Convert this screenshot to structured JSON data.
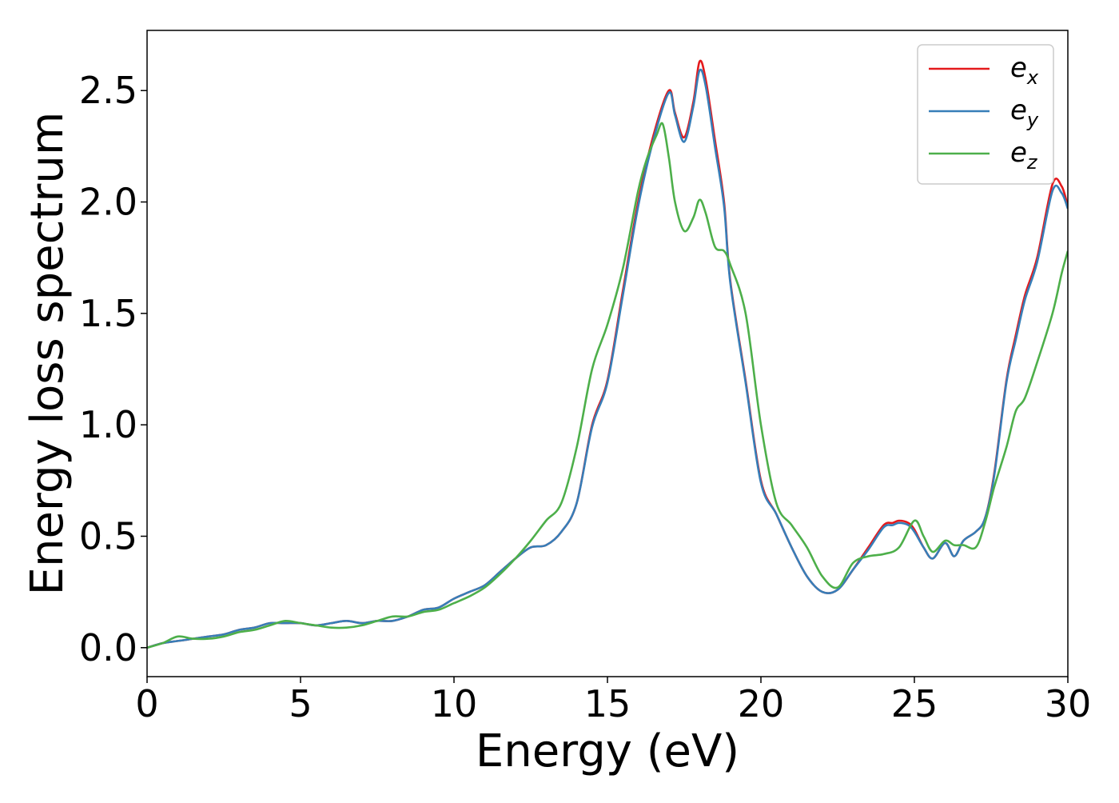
{
  "chart_data": {
    "type": "line",
    "xlabel": "Energy (eV)",
    "ylabel": "Energy loss spectrum",
    "xlim": [
      0,
      30
    ],
    "ylim": [
      -0.13,
      2.77
    ],
    "xticks": [
      0,
      5,
      10,
      15,
      20,
      25,
      30
    ],
    "xtick_labels": [
      "0",
      "5",
      "10",
      "15",
      "20",
      "25",
      "30"
    ],
    "yticks": [
      0.0,
      0.5,
      1.0,
      1.5,
      2.0,
      2.5
    ],
    "ytick_labels": [
      "0.0",
      "0.5",
      "1.0",
      "1.5",
      "2.0",
      "2.5"
    ],
    "grid": false,
    "legend_position": "top-right",
    "series": [
      {
        "name": "e_x",
        "legend_main": "e",
        "legend_sub": "x",
        "color": "#e41a1c",
        "x": [
          0,
          0.5,
          1,
          1.5,
          2,
          2.5,
          3,
          3.5,
          4,
          4.5,
          5,
          5.5,
          6,
          6.5,
          7,
          7.5,
          8,
          8.5,
          9,
          9.5,
          10,
          10.5,
          11,
          11.5,
          12,
          12.5,
          13,
          13.5,
          14,
          14.5,
          15,
          15.5,
          16,
          16.5,
          17,
          17.2,
          17.5,
          17.8,
          18,
          18.2,
          18.5,
          18.8,
          19,
          19.5,
          20,
          20.5,
          21,
          21.5,
          22,
          22.5,
          23,
          23.5,
          24,
          24.3,
          24.5,
          24.8,
          25,
          25.3,
          25.6,
          26,
          26.3,
          26.6,
          27,
          27.3,
          27.6,
          28,
          28.3,
          28.6,
          29,
          29.5,
          29.8,
          30
        ],
        "y": [
          0.0,
          0.02,
          0.03,
          0.04,
          0.05,
          0.06,
          0.08,
          0.09,
          0.11,
          0.11,
          0.11,
          0.1,
          0.11,
          0.12,
          0.11,
          0.12,
          0.12,
          0.14,
          0.17,
          0.18,
          0.22,
          0.25,
          0.28,
          0.34,
          0.4,
          0.45,
          0.46,
          0.52,
          0.65,
          1.0,
          1.2,
          1.6,
          2.0,
          2.3,
          2.5,
          2.4,
          2.29,
          2.45,
          2.63,
          2.55,
          2.28,
          2.0,
          1.65,
          1.2,
          0.75,
          0.6,
          0.45,
          0.32,
          0.25,
          0.26,
          0.35,
          0.45,
          0.55,
          0.56,
          0.57,
          0.56,
          0.53,
          0.45,
          0.4,
          0.47,
          0.41,
          0.48,
          0.52,
          0.58,
          0.78,
          1.2,
          1.4,
          1.58,
          1.75,
          2.08,
          2.07,
          1.98
        ]
      },
      {
        "name": "e_y",
        "legend_main": "e",
        "legend_sub": "y",
        "color": "#377eb8",
        "x": [
          0,
          0.5,
          1,
          1.5,
          2,
          2.5,
          3,
          3.5,
          4,
          4.5,
          5,
          5.5,
          6,
          6.5,
          7,
          7.5,
          8,
          8.5,
          9,
          9.5,
          10,
          10.5,
          11,
          11.5,
          12,
          12.5,
          13,
          13.5,
          14,
          14.5,
          15,
          15.5,
          16,
          16.5,
          17,
          17.2,
          17.5,
          17.8,
          18,
          18.2,
          18.5,
          18.8,
          19,
          19.5,
          20,
          20.5,
          21,
          21.5,
          22,
          22.5,
          23,
          23.5,
          24,
          24.3,
          24.5,
          24.8,
          25,
          25.3,
          25.6,
          26,
          26.3,
          26.6,
          27,
          27.3,
          27.6,
          28,
          28.3,
          28.6,
          29,
          29.5,
          29.8,
          30
        ],
        "y": [
          0.0,
          0.02,
          0.03,
          0.04,
          0.05,
          0.06,
          0.08,
          0.09,
          0.11,
          0.11,
          0.11,
          0.1,
          0.11,
          0.12,
          0.11,
          0.12,
          0.12,
          0.14,
          0.17,
          0.18,
          0.22,
          0.25,
          0.28,
          0.34,
          0.4,
          0.45,
          0.46,
          0.52,
          0.65,
          0.99,
          1.19,
          1.58,
          1.98,
          2.28,
          2.49,
          2.39,
          2.27,
          2.43,
          2.59,
          2.52,
          2.25,
          1.98,
          1.64,
          1.19,
          0.74,
          0.6,
          0.45,
          0.32,
          0.25,
          0.26,
          0.35,
          0.44,
          0.54,
          0.55,
          0.56,
          0.55,
          0.52,
          0.45,
          0.4,
          0.47,
          0.41,
          0.48,
          0.52,
          0.58,
          0.77,
          1.19,
          1.38,
          1.56,
          1.73,
          2.05,
          2.04,
          1.97
        ]
      },
      {
        "name": "e_z",
        "legend_main": "e",
        "legend_sub": "z",
        "color": "#4daf4a",
        "x": [
          0,
          0.5,
          1,
          1.5,
          2,
          2.5,
          3,
          3.5,
          4,
          4.5,
          5,
          5.5,
          6,
          6.5,
          7,
          7.5,
          8,
          8.5,
          9,
          9.5,
          10,
          10.5,
          11,
          11.5,
          12,
          12.5,
          13,
          13.5,
          14,
          14.5,
          15,
          15.5,
          16,
          16.3,
          16.6,
          16.8,
          17,
          17.2,
          17.5,
          17.8,
          18,
          18.2,
          18.5,
          18.8,
          19,
          19.5,
          20,
          20.5,
          21,
          21.5,
          22,
          22.5,
          23,
          23.5,
          24,
          24.5,
          25,
          25.3,
          25.6,
          26,
          26.3,
          26.6,
          27,
          27.3,
          27.6,
          28,
          28.3,
          28.6,
          29,
          29.5,
          29.8,
          30
        ],
        "y": [
          0.0,
          0.02,
          0.05,
          0.04,
          0.04,
          0.05,
          0.07,
          0.08,
          0.1,
          0.12,
          0.11,
          0.1,
          0.09,
          0.09,
          0.1,
          0.12,
          0.14,
          0.14,
          0.16,
          0.17,
          0.2,
          0.23,
          0.27,
          0.33,
          0.4,
          0.48,
          0.57,
          0.65,
          0.9,
          1.25,
          1.45,
          1.7,
          2.05,
          2.2,
          2.3,
          2.35,
          2.2,
          2.0,
          1.87,
          1.93,
          2.01,
          1.95,
          1.8,
          1.78,
          1.72,
          1.5,
          1.0,
          0.65,
          0.55,
          0.45,
          0.32,
          0.27,
          0.38,
          0.41,
          0.42,
          0.45,
          0.57,
          0.5,
          0.43,
          0.48,
          0.46,
          0.46,
          0.45,
          0.56,
          0.72,
          0.9,
          1.06,
          1.12,
          1.28,
          1.5,
          1.68,
          1.78
        ]
      }
    ]
  }
}
